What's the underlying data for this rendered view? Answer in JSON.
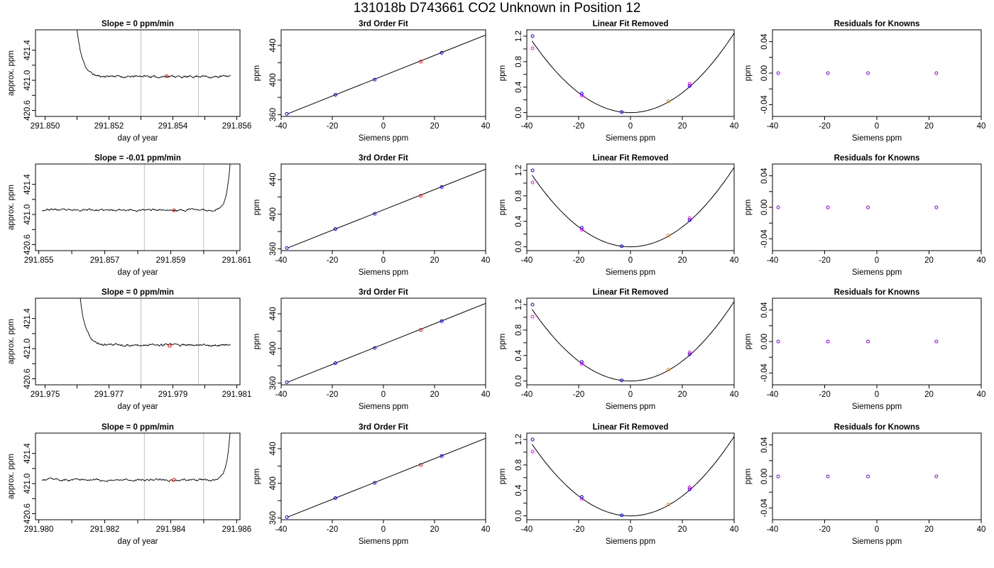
{
  "page": {
    "title": "131018b      D743661    CO2 Unknown in Position  12"
  },
  "colors": {
    "line": "#000000",
    "axis": "#000000",
    "vline": "#c0c0c0",
    "red": "#ff0000",
    "blue": "#0000ff",
    "magenta": "#ff00ff",
    "orange": "#ff7f00",
    "purple": "#7f00ff"
  },
  "chart_data": [
    {
      "type": "line",
      "row": 0,
      "col": 0,
      "title": "Slope =  0  ppm/min",
      "xlabel": "day of year",
      "ylabel": "approx. ppm",
      "xlim": [
        291.8497,
        291.8561
      ],
      "ylim": [
        420.52,
        421.67
      ],
      "xticks": [
        291.85,
        291.852,
        291.854,
        291.856
      ],
      "xtick_labels": [
        "291.850",
        "291.852",
        "291.854",
        "291.856"
      ],
      "xticks_minor": [
        291.851,
        291.853,
        291.855
      ],
      "yticks": [
        420.6,
        420.8,
        421.0,
        421.2,
        421.4
      ],
      "ytick_labels": [
        "420.6",
        "",
        "421.0",
        "",
        "421.4"
      ],
      "vlines": [
        291.853,
        291.8548
      ],
      "marker": {
        "x": 291.8538,
        "y": 421.055
      },
      "trace": {
        "x_start": 291.851,
        "x_end": 291.8558,
        "baseline": 421.05,
        "spike_side": "left",
        "spike_peak": 421.67,
        "seed": 11
      }
    },
    {
      "type": "scatter",
      "row": 0,
      "col": 1,
      "title": "3rd Order Fit",
      "xlabel": "Siemens ppm",
      "ylabel": "ppm",
      "xlim": [
        -40,
        40
      ],
      "ylim": [
        358,
        458
      ],
      "xticks": [
        -40,
        -20,
        0,
        20,
        40
      ],
      "xtick_labels": [
        "-40",
        "-20",
        "0",
        "20",
        "40"
      ],
      "yticks": [
        360,
        400,
        440
      ],
      "ytick_labels": [
        "360",
        "400",
        "440"
      ],
      "yticks_minor": [
        380,
        420
      ],
      "fit_line": [
        [
          -37.5,
          361
        ],
        [
          40,
          452
        ]
      ],
      "points": [
        [
          -37.8,
          361,
          "blue"
        ],
        [
          -18.8,
          383,
          "blue"
        ],
        [
          -3.4,
          400.5,
          "blue"
        ],
        [
          22.8,
          431.5,
          "blue"
        ],
        [
          14.6,
          421.3,
          "red"
        ]
      ]
    },
    {
      "type": "scatter",
      "row": 0,
      "col": 2,
      "title": "Linear Fit Removed",
      "xlabel": "Siemens ppm",
      "ylabel": "ppm",
      "xlim": [
        -40,
        40
      ],
      "ylim": [
        -0.06,
        1.3
      ],
      "xticks": [
        -40,
        -20,
        0,
        20,
        40
      ],
      "xtick_labels": [
        "-40",
        "-20",
        "0",
        "20",
        "40"
      ],
      "yticks": [
        0.0,
        0.4,
        0.8,
        1.2
      ],
      "ytick_labels": [
        "0.0",
        "0.4",
        "0.8",
        "1.2"
      ],
      "yticks_minor": [
        0.2,
        0.6,
        1.0
      ],
      "curve": {
        "vertex_x": 0,
        "coef": 0.00078,
        "x_from": -38,
        "x_to": 40
      },
      "points": [
        [
          -37.8,
          1.2,
          "blue"
        ],
        [
          -37.8,
          1.01,
          "magenta"
        ],
        [
          -18.8,
          0.3,
          "blue"
        ],
        [
          -18.8,
          0.27,
          "magenta"
        ],
        [
          -3.4,
          0.01,
          "blue"
        ],
        [
          22.8,
          0.42,
          "blue"
        ],
        [
          22.8,
          0.45,
          "magenta"
        ],
        [
          14.6,
          0.18,
          "orange"
        ]
      ]
    },
    {
      "type": "scatter",
      "row": 0,
      "col": 3,
      "title": "Residuals for Knowns",
      "xlabel": "Siemens ppm",
      "ylabel": "ppm",
      "xlim": [
        -40,
        40
      ],
      "ylim": [
        -0.055,
        0.055
      ],
      "xticks": [
        -40,
        -20,
        0,
        20,
        40
      ],
      "xtick_labels": [
        "-40",
        "-20",
        "0",
        "20",
        "40"
      ],
      "yticks": [
        -0.04,
        0.0,
        0.04
      ],
      "ytick_labels": [
        "-0.04",
        "0.00",
        "0.04"
      ],
      "yticks_minor": [
        -0.02,
        0.02
      ],
      "points": [
        [
          -37.8,
          0,
          "purple"
        ],
        [
          -18.8,
          0,
          "purple"
        ],
        [
          -3.4,
          0,
          "purple"
        ],
        [
          22.8,
          0,
          "purple"
        ]
      ]
    },
    {
      "type": "line",
      "row": 1,
      "col": 0,
      "title": "Slope =  -0.01  ppm/min",
      "xlabel": "day of year",
      "ylabel": "approx. ppm",
      "xlim": [
        291.8549,
        291.8611
      ],
      "ylim": [
        420.52,
        421.67
      ],
      "xticks": [
        291.855,
        291.857,
        291.859,
        291.861
      ],
      "xtick_labels": [
        "291.855",
        "291.857",
        "291.859",
        "291.861"
      ],
      "xticks_minor": [
        291.856,
        291.858,
        291.86
      ],
      "yticks": [
        420.6,
        420.8,
        421.0,
        421.2,
        421.4
      ],
      "ytick_labels": [
        "420.6",
        "",
        "421.0",
        "",
        "421.4"
      ],
      "vlines": [
        291.8582,
        291.86
      ],
      "marker": {
        "x": 291.8591,
        "y": 421.055
      },
      "trace": {
        "x_start": 291.8551,
        "x_end": 291.8608,
        "baseline": 421.06,
        "spike_side": "right",
        "spike_peak": 421.67,
        "seed": 23
      }
    },
    {
      "type": "scatter",
      "row": 1,
      "col": 1,
      "title": "3rd Order Fit",
      "xlabel": "Siemens ppm",
      "ylabel": "ppm",
      "xlim": [
        -40,
        40
      ],
      "ylim": [
        358,
        458
      ],
      "xticks": [
        -40,
        -20,
        0,
        20,
        40
      ],
      "xtick_labels": [
        "-40",
        "-20",
        "0",
        "20",
        "40"
      ],
      "yticks": [
        360,
        400,
        440
      ],
      "ytick_labels": [
        "360",
        "400",
        "440"
      ],
      "yticks_minor": [
        380,
        420
      ],
      "fit_line": [
        [
          -37.5,
          361
        ],
        [
          40,
          452
        ]
      ],
      "points": [
        [
          -37.8,
          361,
          "blue"
        ],
        [
          -18.8,
          383,
          "blue"
        ],
        [
          -3.4,
          400.5,
          "blue"
        ],
        [
          22.8,
          431.5,
          "blue"
        ],
        [
          14.6,
          421.3,
          "red"
        ]
      ]
    },
    {
      "type": "scatter",
      "row": 1,
      "col": 2,
      "title": "Linear Fit Removed",
      "xlabel": "Siemens ppm",
      "ylabel": "ppm",
      "xlim": [
        -40,
        40
      ],
      "ylim": [
        -0.06,
        1.3
      ],
      "xticks": [
        -40,
        -20,
        0,
        20,
        40
      ],
      "xtick_labels": [
        "-40",
        "-20",
        "0",
        "20",
        "40"
      ],
      "yticks": [
        0.0,
        0.4,
        0.8,
        1.2
      ],
      "ytick_labels": [
        "0.0",
        "0.4",
        "0.8",
        "1.2"
      ],
      "yticks_minor": [
        0.2,
        0.6,
        1.0
      ],
      "curve": {
        "vertex_x": 0,
        "coef": 0.00078,
        "x_from": -38,
        "x_to": 40
      },
      "points": [
        [
          -37.8,
          1.2,
          "blue"
        ],
        [
          -37.8,
          1.01,
          "magenta"
        ],
        [
          -18.8,
          0.3,
          "blue"
        ],
        [
          -18.8,
          0.27,
          "magenta"
        ],
        [
          -3.4,
          0.01,
          "blue"
        ],
        [
          22.8,
          0.42,
          "blue"
        ],
        [
          22.8,
          0.45,
          "magenta"
        ],
        [
          14.6,
          0.18,
          "orange"
        ]
      ]
    },
    {
      "type": "scatter",
      "row": 1,
      "col": 3,
      "title": "Residuals for Knowns",
      "xlabel": "Siemens ppm",
      "ylabel": "ppm",
      "xlim": [
        -40,
        40
      ],
      "ylim": [
        -0.055,
        0.055
      ],
      "xticks": [
        -40,
        -20,
        0,
        20,
        40
      ],
      "xtick_labels": [
        "-40",
        "-20",
        "0",
        "20",
        "40"
      ],
      "yticks": [
        -0.04,
        0.0,
        0.04
      ],
      "ytick_labels": [
        "-0.04",
        "0.00",
        "0.04"
      ],
      "yticks_minor": [
        -0.02,
        0.02
      ],
      "points": [
        [
          -37.8,
          0,
          "purple"
        ],
        [
          -18.8,
          0,
          "purple"
        ],
        [
          -3.4,
          0,
          "purple"
        ],
        [
          22.8,
          0,
          "purple"
        ]
      ]
    },
    {
      "type": "line",
      "row": 2,
      "col": 0,
      "title": "Slope =  0  ppm/min",
      "xlabel": "day of year",
      "ylabel": "approx. ppm",
      "xlim": [
        291.9747,
        291.9811
      ],
      "ylim": [
        420.52,
        421.67
      ],
      "xticks": [
        291.975,
        291.977,
        291.979,
        291.981
      ],
      "xtick_labels": [
        "291.975",
        "291.977",
        "291.979",
        "291.981"
      ],
      "xticks_minor": [
        291.976,
        291.978,
        291.98
      ],
      "yticks": [
        420.6,
        420.8,
        421.0,
        421.2,
        421.4
      ],
      "ytick_labels": [
        "420.6",
        "",
        "421.0",
        "",
        "421.4"
      ],
      "vlines": [
        291.978,
        291.9798
      ],
      "marker": {
        "x": 291.9789,
        "y": 421.04
      },
      "trace": {
        "x_start": 291.9761,
        "x_end": 291.9808,
        "baseline": 421.05,
        "spike_side": "left",
        "spike_peak": 421.67,
        "seed": 37
      }
    },
    {
      "type": "scatter",
      "row": 2,
      "col": 1,
      "title": "3rd Order Fit",
      "xlabel": "Siemens ppm",
      "ylabel": "ppm",
      "xlim": [
        -40,
        40
      ],
      "ylim": [
        358,
        458
      ],
      "xticks": [
        -40,
        -20,
        0,
        20,
        40
      ],
      "xtick_labels": [
        "-40",
        "-20",
        "0",
        "20",
        "40"
      ],
      "yticks": [
        360,
        400,
        440
      ],
      "ytick_labels": [
        "360",
        "400",
        "440"
      ],
      "yticks_minor": [
        380,
        420
      ],
      "fit_line": [
        [
          -37.5,
          361
        ],
        [
          40,
          452
        ]
      ],
      "points": [
        [
          -37.8,
          361,
          "blue"
        ],
        [
          -18.8,
          383,
          "blue"
        ],
        [
          -3.4,
          400.5,
          "blue"
        ],
        [
          22.8,
          431.5,
          "blue"
        ],
        [
          14.6,
          421.3,
          "red"
        ]
      ]
    },
    {
      "type": "scatter",
      "row": 2,
      "col": 2,
      "title": "Linear Fit Removed",
      "xlabel": "Siemens ppm",
      "ylabel": "ppm",
      "xlim": [
        -40,
        40
      ],
      "ylim": [
        -0.06,
        1.3
      ],
      "xticks": [
        -40,
        -20,
        0,
        20,
        40
      ],
      "xtick_labels": [
        "-40",
        "-20",
        "0",
        "20",
        "40"
      ],
      "yticks": [
        0.0,
        0.4,
        0.8,
        1.2
      ],
      "ytick_labels": [
        "0.0",
        "0.4",
        "0.8",
        "1.2"
      ],
      "yticks_minor": [
        0.2,
        0.6,
        1.0
      ],
      "curve": {
        "vertex_x": 0,
        "coef": 0.00078,
        "x_from": -38,
        "x_to": 40
      },
      "points": [
        [
          -37.8,
          1.2,
          "blue"
        ],
        [
          -37.8,
          1.01,
          "magenta"
        ],
        [
          -18.8,
          0.3,
          "blue"
        ],
        [
          -18.8,
          0.27,
          "magenta"
        ],
        [
          -3.4,
          0.01,
          "blue"
        ],
        [
          22.8,
          0.42,
          "blue"
        ],
        [
          22.8,
          0.45,
          "magenta"
        ],
        [
          14.6,
          0.18,
          "orange"
        ]
      ]
    },
    {
      "type": "scatter",
      "row": 2,
      "col": 3,
      "title": "Residuals for Knowns",
      "xlabel": "Siemens ppm",
      "ylabel": "ppm",
      "xlim": [
        -40,
        40
      ],
      "ylim": [
        -0.055,
        0.055
      ],
      "xticks": [
        -40,
        -20,
        0,
        20,
        40
      ],
      "xtick_labels": [
        "-40",
        "-20",
        "0",
        "20",
        "40"
      ],
      "yticks": [
        -0.04,
        0.0,
        0.04
      ],
      "ytick_labels": [
        "-0.04",
        "0.00",
        "0.04"
      ],
      "yticks_minor": [
        -0.02,
        0.02
      ],
      "points": [
        [
          -37.8,
          0,
          "purple"
        ],
        [
          -18.8,
          0,
          "purple"
        ],
        [
          -3.4,
          0,
          "purple"
        ],
        [
          22.8,
          0,
          "purple"
        ]
      ]
    },
    {
      "type": "line",
      "row": 3,
      "col": 0,
      "title": "Slope =  0  ppm/min",
      "xlabel": "day of year",
      "ylabel": "approx. ppm",
      "xlim": [
        291.9799,
        291.9861
      ],
      "ylim": [
        420.52,
        421.67
      ],
      "xticks": [
        291.98,
        291.982,
        291.984,
        291.986
      ],
      "xtick_labels": [
        "291.980",
        "291.982",
        "291.984",
        "291.986"
      ],
      "xticks_minor": [
        291.981,
        291.983,
        291.985
      ],
      "yticks": [
        420.6,
        420.8,
        421.0,
        421.2,
        421.4
      ],
      "ytick_labels": [
        "420.6",
        "",
        "421.0",
        "",
        "421.4"
      ],
      "vlines": [
        291.9832,
        291.985
      ],
      "marker": {
        "x": 291.9841,
        "y": 421.05
      },
      "trace": {
        "x_start": 291.9801,
        "x_end": 291.9858,
        "baseline": 421.05,
        "spike_side": "right",
        "spike_peak": 421.67,
        "seed": 53
      }
    },
    {
      "type": "scatter",
      "row": 3,
      "col": 1,
      "title": "3rd Order Fit",
      "xlabel": "Siemens ppm",
      "ylabel": "ppm",
      "xlim": [
        -40,
        40
      ],
      "ylim": [
        358,
        458
      ],
      "xticks": [
        -40,
        -20,
        0,
        20,
        40
      ],
      "xtick_labels": [
        "-40",
        "-20",
        "0",
        "20",
        "40"
      ],
      "yticks": [
        360,
        400,
        440
      ],
      "ytick_labels": [
        "360",
        "400",
        "440"
      ],
      "yticks_minor": [
        380,
        420
      ],
      "fit_line": [
        [
          -37.5,
          361
        ],
        [
          40,
          452
        ]
      ],
      "points": [
        [
          -37.8,
          361,
          "blue"
        ],
        [
          -18.8,
          383,
          "blue"
        ],
        [
          -3.4,
          400.5,
          "blue"
        ],
        [
          22.8,
          431.5,
          "blue"
        ],
        [
          14.6,
          421.3,
          "red"
        ]
      ]
    },
    {
      "type": "scatter",
      "row": 3,
      "col": 2,
      "title": "Linear Fit Removed",
      "xlabel": "Siemens ppm",
      "ylabel": "ppm",
      "xlim": [
        -40,
        40
      ],
      "ylim": [
        -0.06,
        1.3
      ],
      "xticks": [
        -40,
        -20,
        0,
        20,
        40
      ],
      "xtick_labels": [
        "-40",
        "-20",
        "0",
        "20",
        "40"
      ],
      "yticks": [
        0.0,
        0.4,
        0.8,
        1.2
      ],
      "ytick_labels": [
        "0.0",
        "0.4",
        "0.8",
        "1.2"
      ],
      "yticks_minor": [
        0.2,
        0.6,
        1.0
      ],
      "curve": {
        "vertex_x": 0,
        "coef": 0.00078,
        "x_from": -38,
        "x_to": 40
      },
      "points": [
        [
          -37.8,
          1.2,
          "blue"
        ],
        [
          -37.8,
          1.01,
          "magenta"
        ],
        [
          -18.8,
          0.3,
          "blue"
        ],
        [
          -18.8,
          0.27,
          "magenta"
        ],
        [
          -3.4,
          0.01,
          "blue"
        ],
        [
          22.8,
          0.42,
          "blue"
        ],
        [
          22.8,
          0.45,
          "magenta"
        ],
        [
          14.6,
          0.18,
          "orange"
        ]
      ]
    },
    {
      "type": "scatter",
      "row": 3,
      "col": 3,
      "title": "Residuals for Knowns",
      "xlabel": "Siemens ppm",
      "ylabel": "ppm",
      "xlim": [
        -40,
        40
      ],
      "ylim": [
        -0.055,
        0.055
      ],
      "xticks": [
        -40,
        -20,
        0,
        20,
        40
      ],
      "xtick_labels": [
        "-40",
        "-20",
        "0",
        "20",
        "40"
      ],
      "yticks": [
        -0.04,
        0.0,
        0.04
      ],
      "ytick_labels": [
        "-0.04",
        "0.00",
        "0.04"
      ],
      "yticks_minor": [
        -0.02,
        0.02
      ],
      "points": [
        [
          -37.8,
          0,
          "purple"
        ],
        [
          -18.8,
          0,
          "purple"
        ],
        [
          -3.4,
          0,
          "purple"
        ],
        [
          22.8,
          0,
          "purple"
        ]
      ]
    }
  ]
}
